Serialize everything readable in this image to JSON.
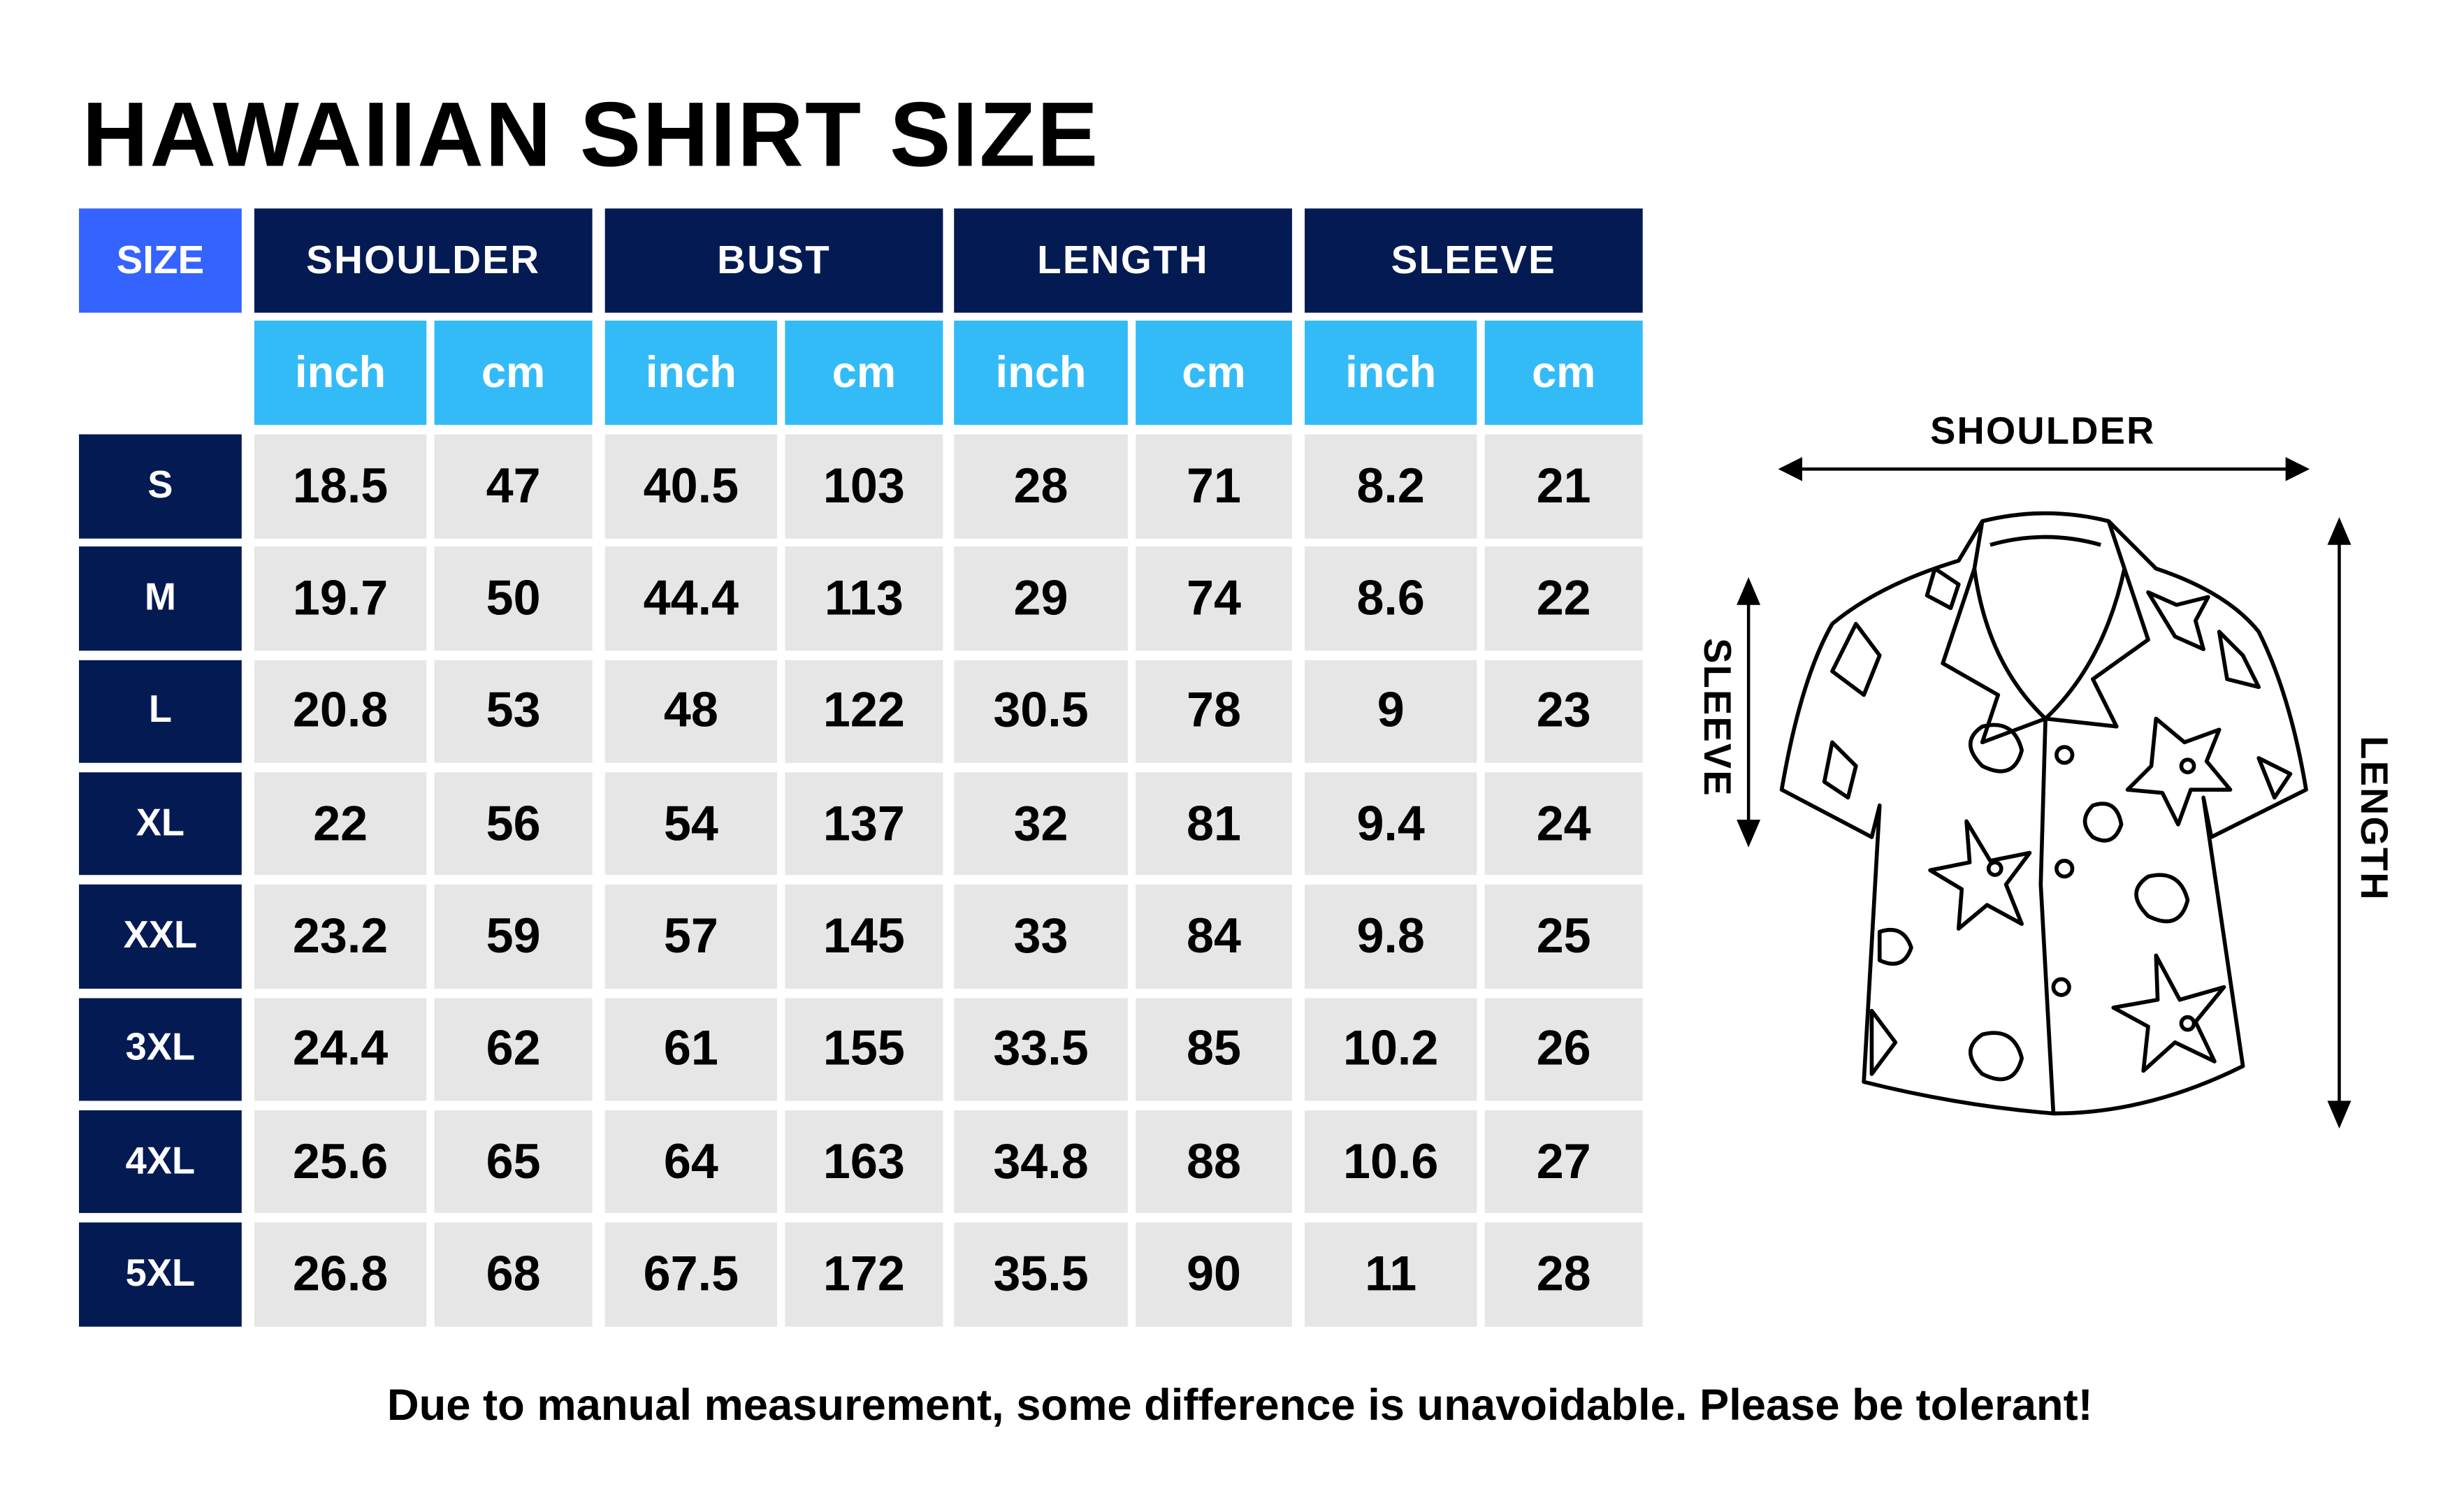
{
  "title": "HAWAIIAN SHIRT SIZE",
  "table": {
    "size_header": "SIZE",
    "groups": [
      "SHOULDER",
      "BUST",
      "LENGTH",
      "SLEEVE"
    ],
    "units": [
      "inch",
      "cm"
    ],
    "rows": [
      {
        "size": "S",
        "values": [
          "18.5",
          "47",
          "40.5",
          "103",
          "28",
          "71",
          "8.2",
          "21"
        ]
      },
      {
        "size": "M",
        "values": [
          "19.7",
          "50",
          "44.4",
          "113",
          "29",
          "74",
          "8.6",
          "22"
        ]
      },
      {
        "size": "L",
        "values": [
          "20.8",
          "53",
          "48",
          "122",
          "30.5",
          "78",
          "9",
          "23"
        ]
      },
      {
        "size": "XL",
        "values": [
          "22",
          "56",
          "54",
          "137",
          "32",
          "81",
          "9.4",
          "24"
        ]
      },
      {
        "size": "XXL",
        "values": [
          "23.2",
          "59",
          "57",
          "145",
          "33",
          "84",
          "9.8",
          "25"
        ]
      },
      {
        "size": "3XL",
        "values": [
          "24.4",
          "62",
          "61",
          "155",
          "33.5",
          "85",
          "10.2",
          "26"
        ]
      },
      {
        "size": "4XL",
        "values": [
          "25.6",
          "65",
          "64",
          "163",
          "34.8",
          "88",
          "10.6",
          "27"
        ]
      },
      {
        "size": "5XL",
        "values": [
          "26.8",
          "68",
          "67.5",
          "172",
          "35.5",
          "90",
          "11",
          "28"
        ]
      }
    ]
  },
  "diagram": {
    "shoulder_label": "SHOULDER",
    "sleeve_label": "SLEEVE",
    "length_label": "LENGTH",
    "icon": "hawaiian-shirt-outline"
  },
  "footer": "Due to manual measurement, some difference is unavoidable. Please be tolerant!",
  "colors": {
    "navy": "#041a52",
    "size_blue": "#3563ff",
    "unit_blue": "#33bbf8",
    "cell_gray": "#e6e6e6"
  }
}
